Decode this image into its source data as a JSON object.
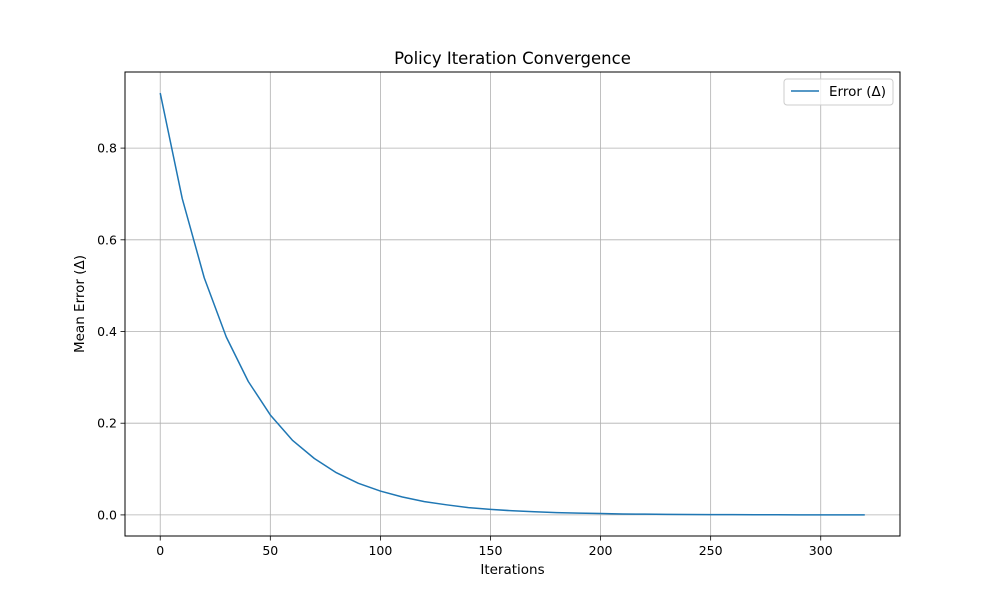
{
  "chart_data": {
    "type": "line",
    "title": "Policy Iteration Convergence",
    "xlabel": "Iterations",
    "ylabel": "Mean Error (Δ)",
    "xlim": [
      -16,
      336
    ],
    "ylim": [
      -0.046,
      0.966
    ],
    "xticks": [
      0,
      50,
      100,
      150,
      200,
      250,
      300
    ],
    "yticks": [
      0.0,
      0.2,
      0.4,
      0.6,
      0.8
    ],
    "ytick_labels": [
      "0.0",
      "0.2",
      "0.4",
      "0.6",
      "0.8"
    ],
    "grid": true,
    "legend": {
      "position": "top-right"
    },
    "series": [
      {
        "name": "Error (Δ)",
        "color": "#1f77b4",
        "x": [
          0,
          10,
          20,
          30,
          40,
          50,
          60,
          70,
          80,
          90,
          100,
          110,
          120,
          130,
          140,
          150,
          160,
          170,
          180,
          190,
          200,
          210,
          220,
          230,
          240,
          250,
          260,
          270,
          280,
          290,
          300,
          310,
          320
        ],
        "y": [
          0.92,
          0.69,
          0.517,
          0.388,
          0.291,
          0.218,
          0.163,
          0.123,
          0.092,
          0.069,
          0.052,
          0.039,
          0.029,
          0.022,
          0.016,
          0.012,
          0.009,
          0.007,
          0.005,
          0.004,
          0.003,
          0.002,
          0.0016,
          0.0012,
          0.0009,
          0.0007,
          0.0005,
          0.0004,
          0.0003,
          0.0002,
          0.0002,
          0.0001,
          0.0001
        ]
      }
    ]
  }
}
